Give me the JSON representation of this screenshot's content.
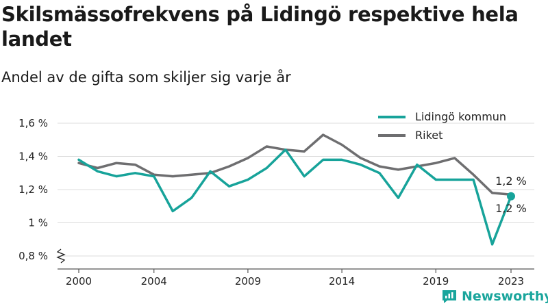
{
  "title": "Skilsmässofrekvens på Lidingö respektive hela landet",
  "subtitle": "Andel av de gifta som skiljer sig varje år",
  "brand": "Newsworthy",
  "chart_data": {
    "type": "line",
    "x": [
      2000,
      2001,
      2002,
      2003,
      2004,
      2005,
      2006,
      2007,
      2008,
      2009,
      2010,
      2011,
      2012,
      2013,
      2014,
      2015,
      2016,
      2017,
      2018,
      2019,
      2020,
      2021,
      2022,
      2023
    ],
    "xticks": [
      2000,
      2004,
      2009,
      2014,
      2019,
      2023
    ],
    "xtick_labels": [
      "2000",
      "2004",
      "2009",
      "2014",
      "2019",
      "2023"
    ],
    "yticks": [
      0.8,
      1.0,
      1.2,
      1.4,
      1.6
    ],
    "ytick_labels": [
      "0,8 %",
      "1 %",
      "1,2 %",
      "1,4 %",
      "1,6 %"
    ],
    "ylim": [
      0.77,
      1.66
    ],
    "axis_break": true,
    "grid": "horizontal",
    "legend_position": "top-right",
    "series": [
      {
        "name": "Lidingö kommun",
        "color": "#17a39a",
        "values": [
          1.38,
          1.31,
          1.28,
          1.3,
          1.28,
          1.07,
          1.15,
          1.31,
          1.22,
          1.26,
          1.33,
          1.44,
          1.28,
          1.38,
          1.38,
          1.35,
          1.3,
          1.15,
          1.35,
          1.26,
          1.26,
          1.26,
          0.87,
          1.16
        ],
        "end_label": "1,2 %"
      },
      {
        "name": "Riket",
        "color": "#6e6e70",
        "values": [
          1.36,
          1.33,
          1.36,
          1.35,
          1.29,
          1.28,
          1.29,
          1.3,
          1.34,
          1.39,
          1.46,
          1.44,
          1.43,
          1.53,
          1.47,
          1.39,
          1.34,
          1.32,
          1.34,
          1.36,
          1.39,
          1.29,
          1.18,
          1.17
        ],
        "end_label": "1,2 %"
      }
    ]
  }
}
